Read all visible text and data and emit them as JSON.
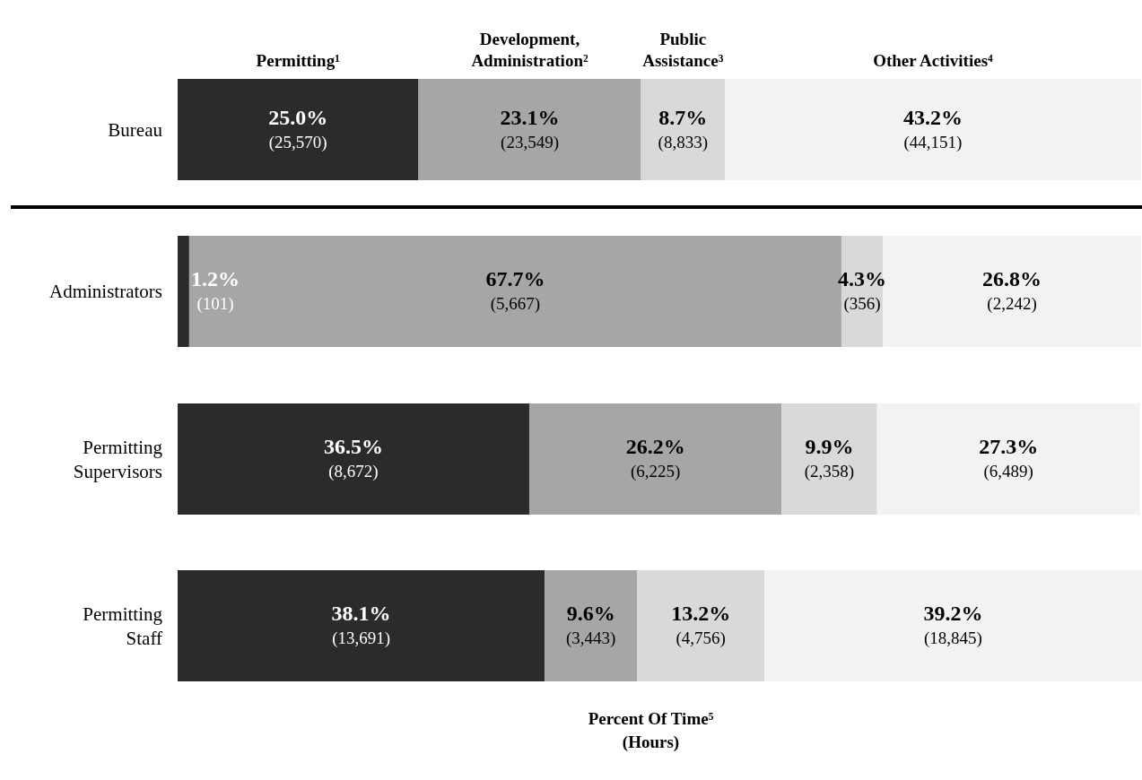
{
  "chart_data": {
    "type": "bar",
    "orientation": "horizontal",
    "stacked": true,
    "legend": "top",
    "xlabel": "Percent Of Time⁵\n(Hours)",
    "categories": [
      "Bureau",
      "Administrators",
      "Permitting\nSupervisors",
      "Permitting\nStaff"
    ],
    "series": [
      {
        "name": "Permitting¹",
        "color": "#2b2b2b",
        "values": [
          25.0,
          1.2,
          36.5,
          38.1
        ],
        "value_labels": [
          "25.0%\n(25,570)",
          "1.2%\n(101)",
          "36.5%\n(8,672)",
          "38.1%\n(13,691)"
        ]
      },
      {
        "name": "Development,\nAdministration²",
        "color": "#a6a6a6",
        "values": [
          23.1,
          67.7,
          26.2,
          9.6
        ],
        "value_labels": [
          "23.1%\n(23,549)",
          "67.7%\n(5,667)",
          "26.2%\n(6,225)",
          "9.6%\n(3,443)"
        ]
      },
      {
        "name": "Public\nAssistance³",
        "color": "#d9d9d9",
        "values": [
          8.7,
          4.3,
          9.9,
          13.2
        ],
        "value_labels": [
          "8.7%\n(8,833)",
          "4.3%\n(356)",
          "9.9%\n(2,358)",
          "13.2%\n(4,756)"
        ]
      },
      {
        "name": "Other Activities⁴",
        "color": "#f2f2f2",
        "values": [
          43.2,
          26.8,
          27.3,
          39.2
        ],
        "value_labels": [
          "43.2%\n(44,151)",
          "26.8%\n(2,242)",
          "27.3%\n(6,489)",
          "39.2%\n(18,845)"
        ]
      }
    ]
  }
}
